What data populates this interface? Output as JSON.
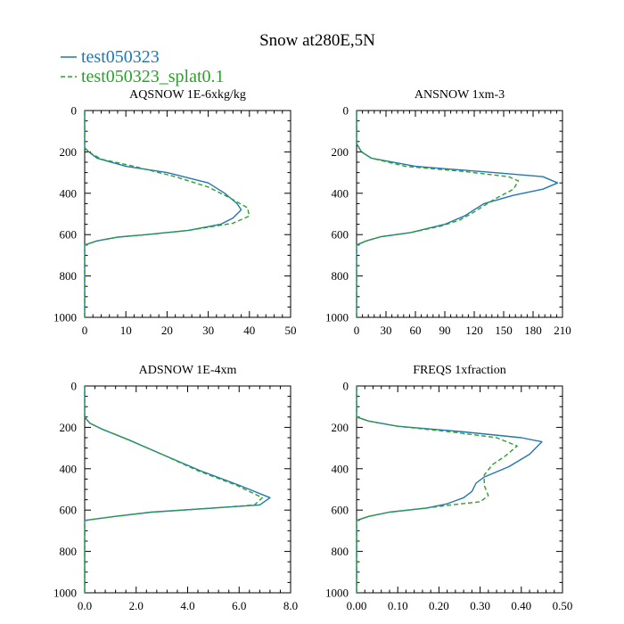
{
  "title": "Snow at280E,5N",
  "legend": [
    {
      "name": "test050323",
      "color": "#1f77b4",
      "dash": "solid"
    },
    {
      "name": "test050323_splat0.1",
      "color": "#2ca02c",
      "dash": "dashed"
    }
  ],
  "chart_data": [
    {
      "type": "line",
      "title": "AQSNOW  1E-6xkg/kg",
      "xlim": [
        0,
        50
      ],
      "ylim": [
        1000,
        0
      ],
      "xticks": [
        0,
        10,
        20,
        30,
        40,
        50
      ],
      "xtick_labels": [
        "0",
        "10",
        "20",
        "30",
        "40",
        "50"
      ],
      "yticks": [
        0,
        200,
        400,
        600,
        800,
        1000
      ],
      "ytick_labels": [
        "0",
        "200",
        "400",
        "600",
        "800",
        "1000"
      ],
      "series": [
        {
          "name": "test050323",
          "points": [
            [
              0,
              1000
            ],
            [
              0,
              700
            ],
            [
              0,
              650
            ],
            [
              3,
              630
            ],
            [
              8,
              612
            ],
            [
              15,
              600
            ],
            [
              25,
              580
            ],
            [
              33,
              550
            ],
            [
              36,
              520
            ],
            [
              38,
              480
            ],
            [
              37,
              450
            ],
            [
              34,
              400
            ],
            [
              30,
              350
            ],
            [
              20,
              300
            ],
            [
              10,
              270
            ],
            [
              3,
              230
            ],
            [
              1,
              200
            ],
            [
              0,
              180
            ],
            [
              0,
              0
            ]
          ]
        },
        {
          "name": "test050323_splat0.1",
          "points": [
            [
              0,
              1000
            ],
            [
              0,
              700
            ],
            [
              0,
              650
            ],
            [
              3,
              630
            ],
            [
              8,
              612
            ],
            [
              15,
              600
            ],
            [
              25,
              580
            ],
            [
              36,
              545
            ],
            [
              40,
              510
            ],
            [
              39.5,
              470
            ],
            [
              35,
              420
            ],
            [
              30,
              370
            ],
            [
              22,
              320
            ],
            [
              12,
              270
            ],
            [
              4,
              235
            ],
            [
              1,
              200
            ],
            [
              0,
              180
            ],
            [
              0,
              0
            ]
          ]
        }
      ]
    },
    {
      "type": "line",
      "title": "ANSNOW  1xm-3",
      "xlim": [
        0,
        210
      ],
      "ylim": [
        1000,
        0
      ],
      "xticks": [
        0,
        30,
        60,
        90,
        120,
        150,
        180,
        210
      ],
      "xtick_labels": [
        "0",
        "30",
        "60",
        "90",
        "120",
        "150",
        "180",
        "210"
      ],
      "yticks": [
        0,
        200,
        400,
        600,
        800,
        1000
      ],
      "ytick_labels": [
        "0",
        "200",
        "400",
        "600",
        "800",
        "1000"
      ],
      "series": [
        {
          "name": "test050323",
          "points": [
            [
              0,
              1000
            ],
            [
              0,
              700
            ],
            [
              0,
              650
            ],
            [
              10,
              630
            ],
            [
              25,
              610
            ],
            [
              55,
              590
            ],
            [
              90,
              550
            ],
            [
              110,
              510
            ],
            [
              130,
              450
            ],
            [
              160,
              410
            ],
            [
              190,
              380
            ],
            [
              205,
              350
            ],
            [
              190,
              320
            ],
            [
              140,
              300
            ],
            [
              60,
              270
            ],
            [
              15,
              230
            ],
            [
              5,
              200
            ],
            [
              0,
              160
            ],
            [
              0,
              0
            ]
          ]
        },
        {
          "name": "test050323_splat0.1",
          "points": [
            [
              0,
              1000
            ],
            [
              0,
              700
            ],
            [
              0,
              650
            ],
            [
              10,
              630
            ],
            [
              25,
              610
            ],
            [
              55,
              590
            ],
            [
              85,
              560
            ],
            [
              105,
              530
            ],
            [
              120,
              490
            ],
            [
              140,
              430
            ],
            [
              160,
              380
            ],
            [
              165,
              340
            ],
            [
              155,
              320
            ],
            [
              110,
              295
            ],
            [
              50,
              270
            ],
            [
              15,
              230
            ],
            [
              5,
              200
            ],
            [
              0,
              160
            ],
            [
              0,
              0
            ]
          ]
        }
      ]
    },
    {
      "type": "line",
      "title": "ADSNOW  1E-4xm",
      "xlim": [
        0,
        8
      ],
      "ylim": [
        1000,
        0
      ],
      "xticks": [
        0,
        2,
        4,
        6,
        8
      ],
      "xtick_labels": [
        "0.0",
        "2.0",
        "4.0",
        "6.0",
        "8.0"
      ],
      "yticks": [
        0,
        200,
        400,
        600,
        800,
        1000
      ],
      "ytick_labels": [
        "0",
        "200",
        "400",
        "600",
        "800",
        "1000"
      ],
      "series": [
        {
          "name": "test050323",
          "points": [
            [
              0,
              1000
            ],
            [
              0,
              700
            ],
            [
              0,
              650
            ],
            [
              1.2,
              630
            ],
            [
              2.6,
              610
            ],
            [
              5,
              590
            ],
            [
              6.8,
              575
            ],
            [
              7.2,
              540
            ],
            [
              6,
              480
            ],
            [
              4.5,
              410
            ],
            [
              3,
              330
            ],
            [
              1.7,
              260
            ],
            [
              0.7,
              210
            ],
            [
              0.2,
              180
            ],
            [
              0,
              150
            ],
            [
              0,
              0
            ]
          ]
        },
        {
          "name": "test050323_splat0.1",
          "points": [
            [
              0,
              1000
            ],
            [
              0,
              700
            ],
            [
              0,
              650
            ],
            [
              1.2,
              630
            ],
            [
              2.6,
              610
            ],
            [
              5,
              590
            ],
            [
              6.6,
              575
            ],
            [
              6.9,
              540
            ],
            [
              5.9,
              480
            ],
            [
              4.4,
              410
            ],
            [
              3,
              330
            ],
            [
              1.7,
              260
            ],
            [
              0.7,
              210
            ],
            [
              0.2,
              180
            ],
            [
              0,
              150
            ],
            [
              0,
              0
            ]
          ]
        }
      ]
    },
    {
      "type": "line",
      "title": "FREQS  1xfraction",
      "xlim": [
        0,
        0.5
      ],
      "ylim": [
        1000,
        0
      ],
      "xticks": [
        0,
        0.1,
        0.2,
        0.3,
        0.4,
        0.5
      ],
      "xtick_labels": [
        "0.00",
        "0.10",
        "0.20",
        "0.30",
        "0.40",
        "0.50"
      ],
      "yticks": [
        0,
        200,
        400,
        600,
        800,
        1000
      ],
      "ytick_labels": [
        "0",
        "200",
        "400",
        "600",
        "800",
        "1000"
      ],
      "series": [
        {
          "name": "test050323",
          "points": [
            [
              0,
              1000
            ],
            [
              0,
              700
            ],
            [
              0,
              650
            ],
            [
              0.03,
              630
            ],
            [
              0.08,
              610
            ],
            [
              0.17,
              590
            ],
            [
              0.22,
              570
            ],
            [
              0.26,
              540
            ],
            [
              0.28,
              510
            ],
            [
              0.29,
              470
            ],
            [
              0.31,
              440
            ],
            [
              0.37,
              390
            ],
            [
              0.42,
              330
            ],
            [
              0.45,
              270
            ],
            [
              0.4,
              250
            ],
            [
              0.25,
              220
            ],
            [
              0.1,
              195
            ],
            [
              0.03,
              170
            ],
            [
              0,
              150
            ],
            [
              0,
              0
            ]
          ]
        },
        {
          "name": "test050323_splat0.1",
          "points": [
            [
              0,
              1000
            ],
            [
              0,
              700
            ],
            [
              0,
              650
            ],
            [
              0.03,
              630
            ],
            [
              0.08,
              610
            ],
            [
              0.17,
              590
            ],
            [
              0.23,
              575
            ],
            [
              0.3,
              560
            ],
            [
              0.32,
              530
            ],
            [
              0.31,
              480
            ],
            [
              0.31,
              430
            ],
            [
              0.33,
              380
            ],
            [
              0.36,
              340
            ],
            [
              0.39,
              290
            ],
            [
              0.34,
              250
            ],
            [
              0.22,
              220
            ],
            [
              0.1,
              195
            ],
            [
              0.03,
              170
            ],
            [
              0,
              150
            ],
            [
              0,
              0
            ]
          ]
        }
      ]
    }
  ]
}
